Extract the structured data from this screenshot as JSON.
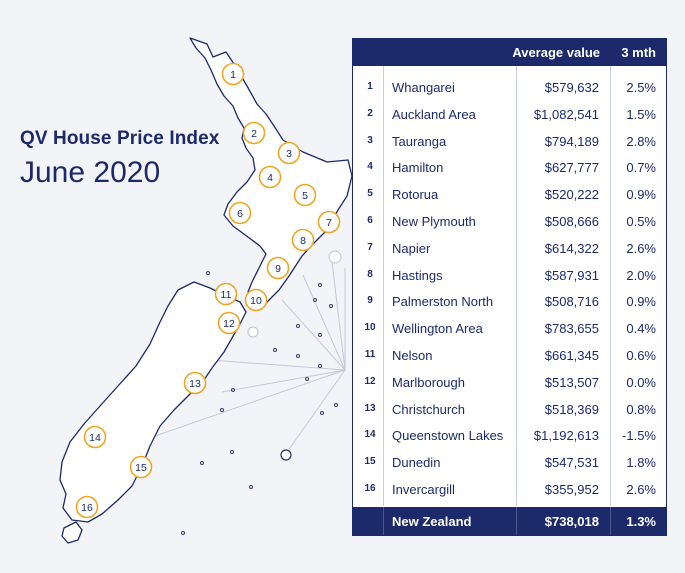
{
  "title": "QV House Price Index",
  "subtitle": "June 2020",
  "table": {
    "headers": {
      "average_value": "Average value",
      "change": "3 mth"
    },
    "rows": [
      {
        "n": "1",
        "name": "Whangarei",
        "value": "$579,632",
        "change": "2.5%"
      },
      {
        "n": "2",
        "name": "Auckland Area",
        "value": "$1,082,541",
        "change": "1.5%"
      },
      {
        "n": "3",
        "name": "Tauranga",
        "value": "$794,189",
        "change": "2.8%"
      },
      {
        "n": "4",
        "name": "Hamilton",
        "value": "$627,777",
        "change": "0.7%"
      },
      {
        "n": "5",
        "name": "Rotorua",
        "value": "$520,222",
        "change": "0.9%"
      },
      {
        "n": "6",
        "name": "New Plymouth",
        "value": "$508,666",
        "change": "0.5%"
      },
      {
        "n": "7",
        "name": "Napier",
        "value": "$614,322",
        "change": "2.6%"
      },
      {
        "n": "8",
        "name": "Hastings",
        "value": "$587,931",
        "change": "2.0%"
      },
      {
        "n": "9",
        "name": "Palmerston North",
        "value": "$508,716",
        "change": "0.9%"
      },
      {
        "n": "10",
        "name": "Wellington Area",
        "value": "$783,655",
        "change": "0.4%"
      },
      {
        "n": "11",
        "name": "Nelson",
        "value": "$661,345",
        "change": "0.6%"
      },
      {
        "n": "12",
        "name": "Marlborough",
        "value": "$513,507",
        "change": "0.0%"
      },
      {
        "n": "13",
        "name": "Christchurch",
        "value": "$518,369",
        "change": "0.8%"
      },
      {
        "n": "14",
        "name": "Queenstown Lakes",
        "value": "$1,192,613",
        "change": "-1.5%"
      },
      {
        "n": "15",
        "name": "Dunedin",
        "value": "$547,531",
        "change": "1.8%"
      },
      {
        "n": "16",
        "name": "Invercargill",
        "value": "$355,952",
        "change": "2.6%"
      }
    ],
    "footer": {
      "name": "New Zealand",
      "value": "$738,018",
      "change": "1.3%"
    }
  },
  "map_markers": [
    "1",
    "2",
    "3",
    "4",
    "5",
    "6",
    "7",
    "8",
    "9",
    "10",
    "11",
    "12",
    "13",
    "14",
    "15",
    "16"
  ],
  "colors": {
    "navy": "#1c2a6c",
    "marker": "#f0a521",
    "background": "#f3f4f8",
    "island_fill": "#ffffff"
  }
}
